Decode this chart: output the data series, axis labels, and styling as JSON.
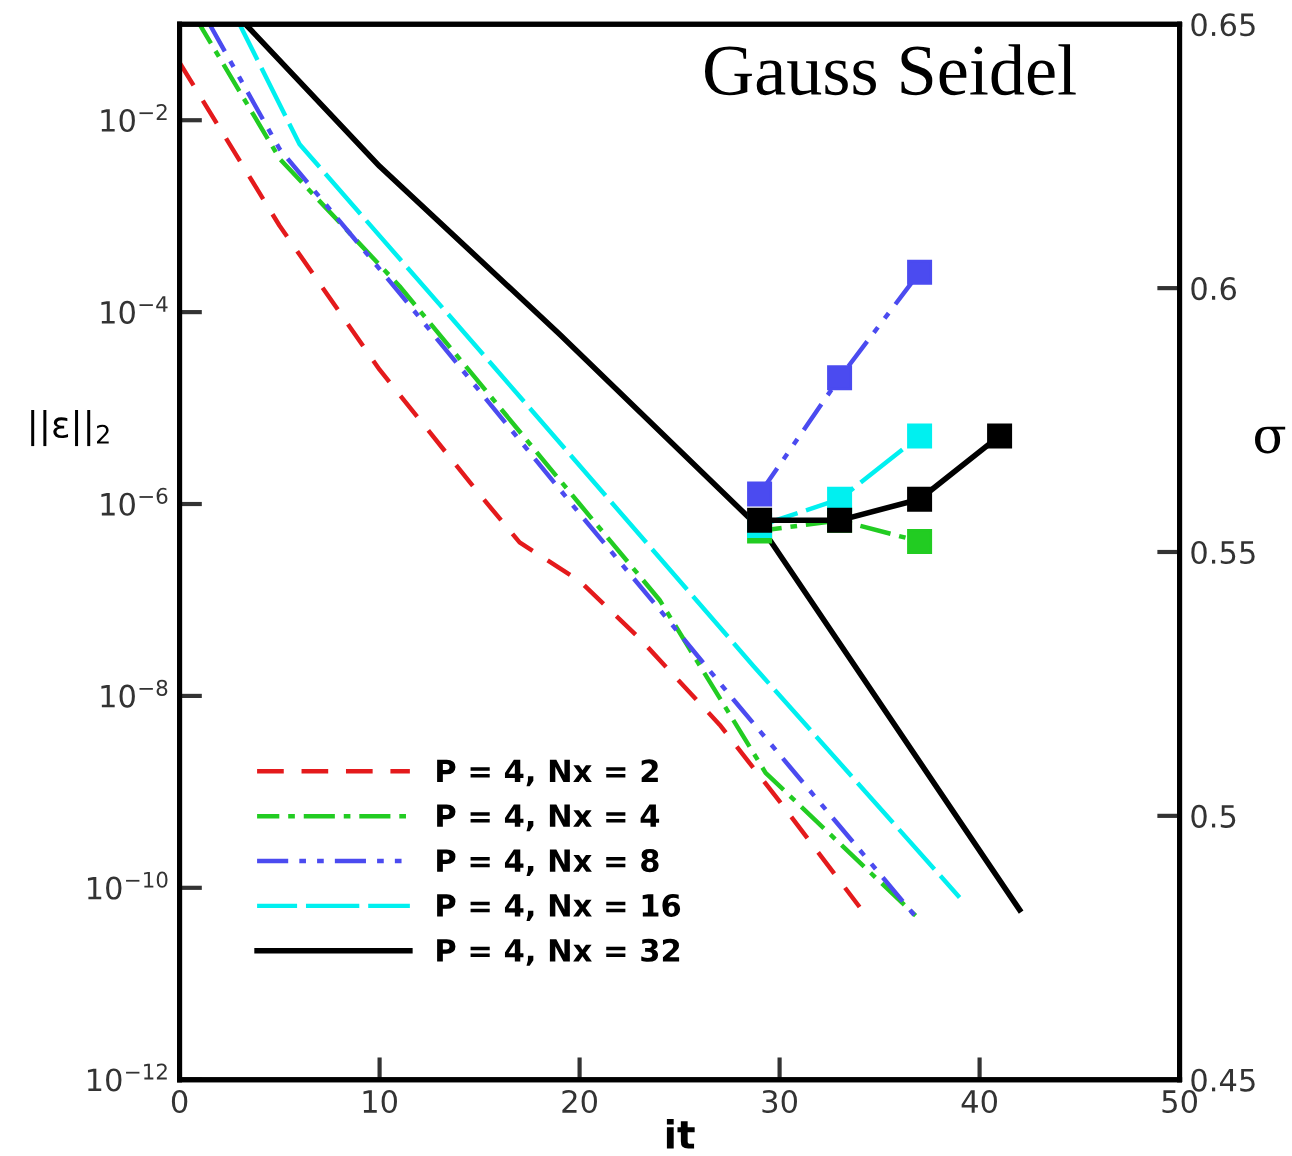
{
  "chart_data": {
    "type": "line",
    "title": "Gauss Seidel",
    "xlabel": "it",
    "ylabel": "||ε||$_{2}$",
    "y2label": "σ",
    "log": "y",
    "xlim": [
      0,
      50
    ],
    "xticks": [
      0,
      10,
      20,
      30,
      40,
      50
    ],
    "ylim": [
      1e-12,
      0.1
    ],
    "yticks": [
      {
        "value": 1e-12,
        "label": "10$^{−12}$"
      },
      {
        "value": 1e-10,
        "label": "10$^{−10}$"
      },
      {
        "value": 1e-08,
        "label": "10$^{−8}$"
      },
      {
        "value": 1e-06,
        "label": "10$^{−6}$"
      },
      {
        "value": 0.0001,
        "label": "10$^{−4}$"
      },
      {
        "value": 0.01,
        "label": "10$^{−2}$"
      }
    ],
    "y2lim": [
      0.45,
      0.65
    ],
    "y2ticks": [
      0.45,
      0.5,
      0.55,
      0.6,
      0.65
    ],
    "grid": false,
    "legend": "bottom left",
    "marker": "none",
    "series": [
      {
        "name": "P = 4, Nx = 2",
        "color": "#e41a1c",
        "line_style": "dashed",
        "x": [
          0,
          5,
          10,
          15,
          17,
          20,
          23,
          27,
          30,
          34
        ],
        "values": [
          0.0398,
          0.000794,
          2.51e-05,
          1.26e-06,
          3.98e-07,
          1.58e-07,
          3.98e-08,
          5.01e-09,
          7.94e-10,
          6.31e-11
        ]
      },
      {
        "name": "P = 4, Nx = 4",
        "color": "#22cc22",
        "line_style": "dashdot",
        "x": [
          1,
          5,
          11,
          20,
          24,
          29.3,
          37
        ],
        "values": [
          0.1,
          0.00398,
          0.000186,
          1e-06,
          1e-07,
          1.58e-09,
          4.68e-11
        ]
      },
      {
        "name": "P = 4, Nx = 8",
        "color": "#4b4bf0",
        "line_style": "dashdotdot",
        "x": [
          1.5,
          5,
          11,
          20,
          24,
          27.7,
          37
        ],
        "values": [
          0.1,
          0.00501,
          0.000158,
          7.94e-07,
          7.94e-08,
          9.12e-09,
          4.47e-11
        ]
      },
      {
        "name": "P = 4, Nx = 16",
        "color": "#00f0f0",
        "line_style": "longdash",
        "x": [
          3,
          6,
          14.3,
          28.7,
          39
        ],
        "values": [
          0.1,
          0.00562,
          5.89e-05,
          2.04e-08,
          7.94e-11
        ]
      },
      {
        "name": "P = 4, Nx = 32",
        "color": "#000000",
        "line_style": "solid",
        "x": [
          3.3,
          10,
          19,
          29.3,
          42
        ],
        "values": [
          0.1,
          0.00331,
          5.89e-05,
          4.9e-07,
          5.89e-11
        ]
      },
      {
        "axis": "y2",
        "color": "#22cc22",
        "line_style": "dashdot",
        "marker": "square",
        "x": [
          29,
          33,
          37
        ],
        "values": [
          0.554,
          0.556,
          0.552
        ]
      },
      {
        "axis": "y2",
        "color": "#4b4bf0",
        "line_style": "dashdotdot",
        "marker": "square",
        "x": [
          29,
          33,
          37
        ],
        "values": [
          0.561,
          0.583,
          0.603
        ]
      },
      {
        "axis": "y2",
        "color": "#00f0f0",
        "line_style": "longdash",
        "marker": "square",
        "x": [
          29,
          33,
          37
        ],
        "values": [
          0.555,
          0.56,
          0.572
        ]
      },
      {
        "axis": "y2",
        "color": "#000000",
        "line_style": "solid",
        "marker": "square",
        "x": [
          29,
          33,
          37,
          41
        ],
        "values": [
          0.556,
          0.556,
          0.56,
          0.572
        ]
      }
    ]
  }
}
